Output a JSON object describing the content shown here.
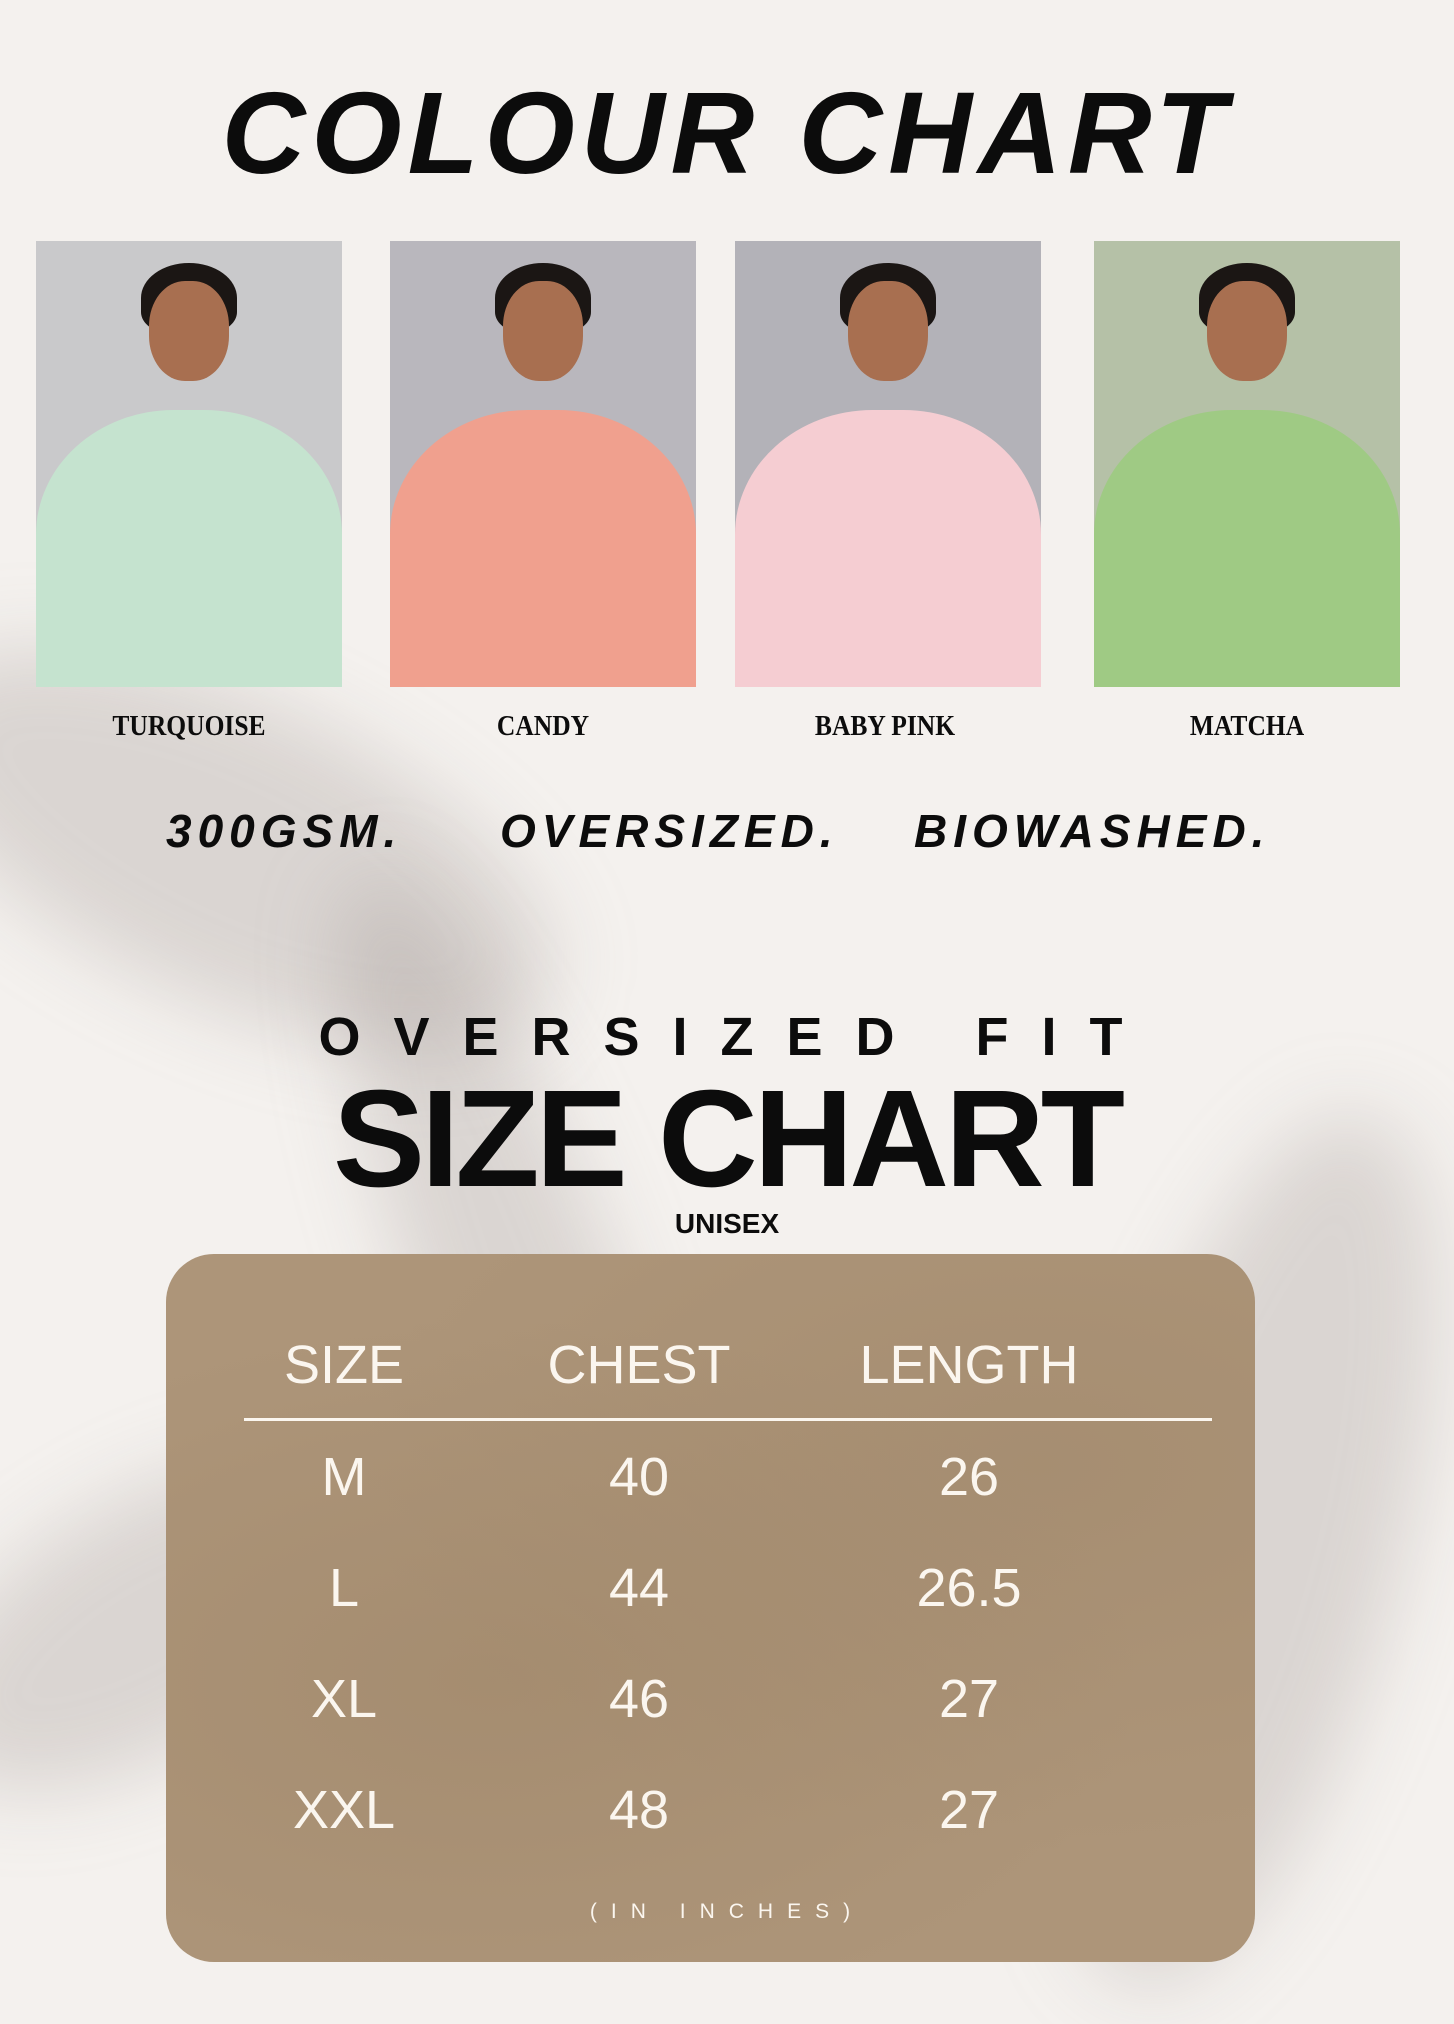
{
  "title": "COLOUR CHART",
  "colours": [
    {
      "name": "TURQUOISE",
      "swatch": "#c5e3cf",
      "wall": "#c9c9cb"
    },
    {
      "name": "CANDY",
      "swatch": "#f0a08e",
      "wall": "#b9b7bd"
    },
    {
      "name": "BABY PINK",
      "swatch": "#f5cdd2",
      "wall": "#b3b2b8"
    },
    {
      "name": "MATCHA",
      "swatch": "#9fca84",
      "wall": "#b5c1a7"
    }
  ],
  "features": [
    "300GSM.",
    "OVERSIZED.",
    "BIOWASHED."
  ],
  "size_chart": {
    "kicker": "OVERSIZED FIT",
    "title": "SIZE CHART",
    "subtitle": "UNISEX",
    "headers": [
      "SIZE",
      "CHEST",
      "LENGTH"
    ],
    "rows": [
      [
        "M",
        "40",
        "26"
      ],
      [
        "L",
        "44",
        "26.5"
      ],
      [
        "XL",
        "46",
        "27"
      ],
      [
        "XXL",
        "48",
        "27"
      ]
    ],
    "unit_note": "(IN INCHES)",
    "panel_color": "#ad9579"
  }
}
